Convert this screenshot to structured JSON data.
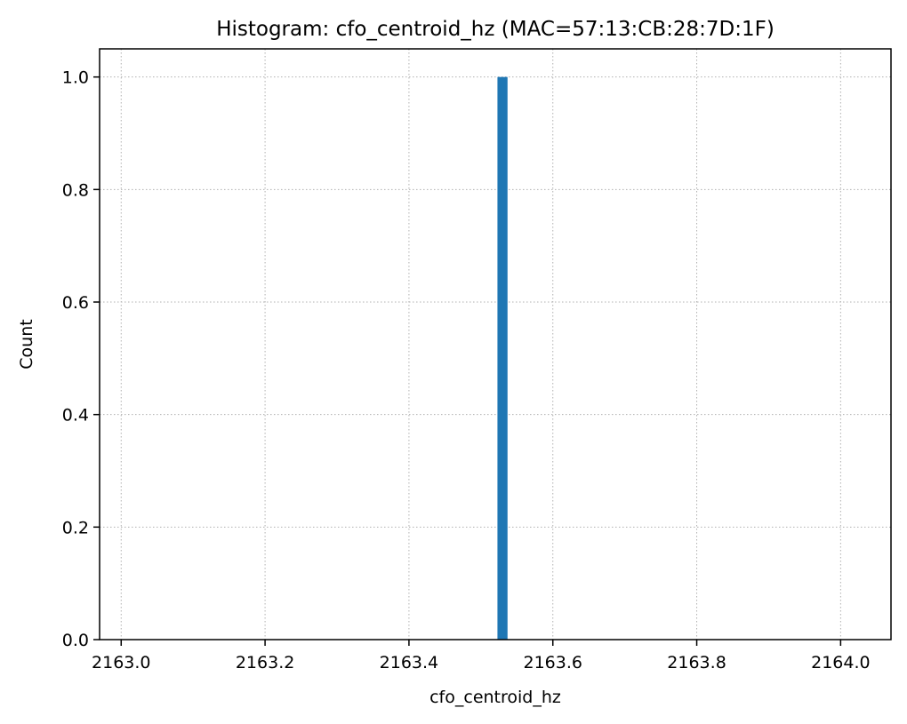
{
  "chart_data": {
    "type": "bar",
    "title": "Histogram: cfo_centroid_hz (MAC=57:13:CB:28:7D:1F)",
    "xlabel": "cfo_centroid_hz",
    "ylabel": "Count",
    "xlim": [
      2162.97,
      2164.07
    ],
    "ylim": [
      0.0,
      1.05
    ],
    "xticks": [
      2163.0,
      2163.2,
      2163.4,
      2163.6,
      2163.8,
      2164.0
    ],
    "xtick_labels": [
      "2163.0",
      "2163.2",
      "2163.4",
      "2163.6",
      "2163.8",
      "2164.0"
    ],
    "yticks": [
      0.0,
      0.2,
      0.4,
      0.6,
      0.8,
      1.0
    ],
    "ytick_labels": [
      "0.0",
      "0.2",
      "0.4",
      "0.6",
      "0.8",
      "1.0"
    ],
    "grid": true,
    "grid_style": "dotted",
    "bars": [
      {
        "x0": 2163.523,
        "x1": 2163.537,
        "count": 1
      }
    ],
    "colors": {
      "bar": "#1f77b4",
      "grid": "#b0b0b0",
      "axis": "#000000"
    }
  }
}
